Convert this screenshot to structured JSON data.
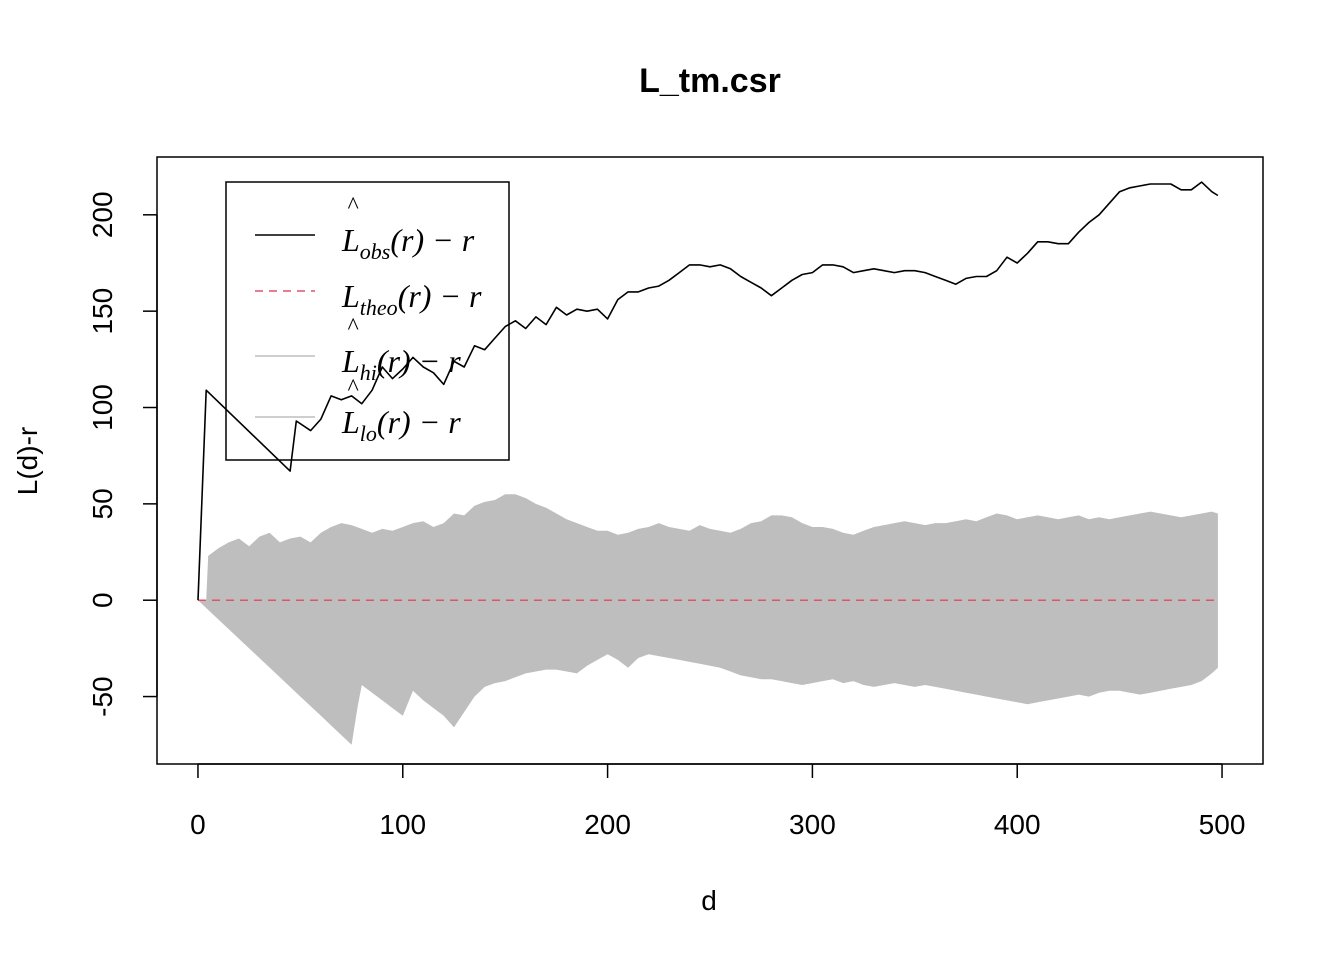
{
  "chart_data": {
    "type": "line",
    "title": "L_tm.csr",
    "xlabel": "d",
    "ylabel": "L(d)-r",
    "xlim": [
      -20,
      520
    ],
    "ylim": [
      -85,
      230
    ],
    "x_ticks": [
      0,
      100,
      200,
      300,
      400,
      500
    ],
    "y_ticks": [
      -50,
      0,
      50,
      100,
      150,
      200
    ],
    "grid": false,
    "legend_position": "top-left",
    "legend": [
      {
        "main": "L",
        "hat": "^",
        "sub": "obs",
        "rest": "(r) − r",
        "color": "#000000",
        "style": "solid"
      },
      {
        "main": "L",
        "hat": "",
        "sub": "theo",
        "rest": "(r) − r",
        "color": "#DF536B",
        "style": "dashed"
      },
      {
        "main": "L",
        "hat": "^",
        "sub": "hi",
        "rest": "(r) − r",
        "color": "#BEBEBE",
        "style": "solid"
      },
      {
        "main": "L",
        "hat": "^",
        "sub": "lo",
        "rest": "(r) − r",
        "color": "#BEBEBE",
        "style": "solid"
      }
    ],
    "colors": {
      "obs": "#000000",
      "theo": "#DF536B",
      "envelope": "#BEBEBE",
      "axis": "#000000"
    },
    "series": [
      {
        "name": "obs",
        "x": [
          0,
          4,
          45,
          48,
          55,
          60,
          65,
          70,
          75,
          80,
          85,
          90,
          95,
          100,
          105,
          110,
          115,
          120,
          125,
          130,
          135,
          140,
          145,
          150,
          155,
          160,
          165,
          170,
          175,
          180,
          185,
          190,
          195,
          200,
          205,
          210,
          215,
          220,
          225,
          230,
          235,
          240,
          245,
          250,
          255,
          260,
          265,
          270,
          275,
          280,
          285,
          290,
          295,
          300,
          305,
          310,
          315,
          320,
          325,
          330,
          335,
          340,
          345,
          350,
          355,
          360,
          365,
          370,
          375,
          380,
          385,
          390,
          395,
          400,
          405,
          410,
          415,
          420,
          425,
          430,
          435,
          440,
          445,
          450,
          455,
          460,
          465,
          470,
          475,
          480,
          485,
          490,
          495,
          498
        ],
        "values": [
          0,
          109,
          67,
          93,
          88,
          94,
          106,
          104,
          106,
          102,
          109,
          121,
          115,
          120,
          126,
          121,
          118,
          112,
          124,
          121,
          132,
          130,
          136,
          142,
          145,
          141,
          147,
          143,
          152,
          148,
          151,
          150,
          151,
          146,
          156,
          160,
          160,
          162,
          163,
          166,
          170,
          174,
          174,
          173,
          174,
          172,
          168,
          165,
          162,
          158,
          162,
          166,
          169,
          170,
          174,
          174,
          173,
          170,
          171,
          172,
          171,
          170,
          171,
          171,
          170,
          168,
          166,
          164,
          167,
          168,
          168,
          171,
          178,
          175,
          180,
          186,
          186,
          185,
          185,
          191,
          196,
          200,
          206,
          212,
          214,
          215,
          216,
          216,
          216,
          213,
          213,
          217,
          212,
          210
        ]
      },
      {
        "name": "theo",
        "x": [
          0,
          498
        ],
        "values": [
          0,
          0
        ]
      },
      {
        "name": "hi",
        "x": [
          0,
          4,
          5,
          10,
          15,
          20,
          25,
          30,
          35,
          40,
          45,
          50,
          55,
          60,
          65,
          70,
          75,
          80,
          85,
          90,
          95,
          100,
          105,
          110,
          115,
          120,
          125,
          130,
          135,
          140,
          145,
          150,
          155,
          160,
          165,
          170,
          175,
          180,
          185,
          190,
          195,
          200,
          205,
          210,
          215,
          220,
          225,
          230,
          235,
          240,
          245,
          250,
          255,
          260,
          265,
          270,
          275,
          280,
          285,
          290,
          295,
          300,
          305,
          310,
          315,
          320,
          325,
          330,
          335,
          340,
          345,
          350,
          355,
          360,
          365,
          370,
          375,
          380,
          385,
          390,
          395,
          400,
          405,
          410,
          415,
          420,
          425,
          430,
          435,
          440,
          445,
          450,
          455,
          460,
          465,
          470,
          475,
          480,
          485,
          490,
          495,
          498
        ],
        "values": [
          0,
          0,
          23,
          27,
          30,
          32,
          28,
          33,
          35,
          30,
          32,
          33,
          30,
          35,
          38,
          40,
          39,
          37,
          35,
          37,
          36,
          38,
          40,
          41,
          38,
          40,
          45,
          44,
          49,
          51,
          52,
          55,
          55,
          53,
          50,
          48,
          45,
          42,
          40,
          38,
          36,
          36,
          34,
          35,
          37,
          38,
          40,
          38,
          37,
          36,
          39,
          37,
          36,
          35,
          37,
          40,
          41,
          44,
          44,
          43,
          40,
          38,
          38,
          37,
          35,
          34,
          36,
          38,
          39,
          40,
          41,
          40,
          39,
          40,
          40,
          41,
          42,
          41,
          43,
          45,
          44,
          42,
          43,
          44,
          43,
          42,
          43,
          44,
          42,
          43,
          42,
          43,
          44,
          45,
          46,
          45,
          44,
          43,
          44,
          45,
          46,
          45
        ]
      },
      {
        "name": "lo",
        "x": [
          0,
          10,
          20,
          30,
          40,
          50,
          60,
          70,
          75,
          78,
          80,
          85,
          90,
          95,
          100,
          105,
          110,
          115,
          120,
          125,
          130,
          135,
          140,
          145,
          150,
          155,
          160,
          165,
          170,
          175,
          180,
          185,
          190,
          195,
          200,
          205,
          210,
          215,
          220,
          225,
          230,
          235,
          240,
          245,
          250,
          255,
          260,
          265,
          270,
          275,
          280,
          285,
          290,
          295,
          300,
          305,
          310,
          315,
          320,
          325,
          330,
          335,
          340,
          345,
          350,
          355,
          360,
          365,
          370,
          375,
          380,
          385,
          390,
          395,
          400,
          405,
          410,
          415,
          420,
          425,
          430,
          435,
          440,
          445,
          450,
          455,
          460,
          465,
          470,
          475,
          480,
          485,
          490,
          495,
          498
        ],
        "values": [
          0,
          -10,
          -20,
          -30,
          -40,
          -50,
          -60,
          -70,
          -75,
          -55,
          -44,
          -48,
          -52,
          -56,
          -60,
          -47,
          -52,
          -56,
          -60,
          -66,
          -58,
          -50,
          -45,
          -43,
          -42,
          -40,
          -38,
          -37,
          -36,
          -36,
          -37,
          -38,
          -34,
          -31,
          -28,
          -31,
          -35,
          -30,
          -28,
          -29,
          -30,
          -31,
          -32,
          -33,
          -34,
          -35,
          -37,
          -39,
          -40,
          -41,
          -41,
          -42,
          -43,
          -44,
          -43,
          -42,
          -41,
          -43,
          -42,
          -44,
          -45,
          -44,
          -43,
          -44,
          -45,
          -44,
          -45,
          -46,
          -47,
          -48,
          -49,
          -50,
          -51,
          -52,
          -53,
          -54,
          -53,
          -52,
          -51,
          -50,
          -49,
          -50,
          -48,
          -47,
          -47,
          -48,
          -49,
          -48,
          -47,
          -46,
          -45,
          -44,
          -42,
          -38,
          -35
        ]
      }
    ]
  }
}
